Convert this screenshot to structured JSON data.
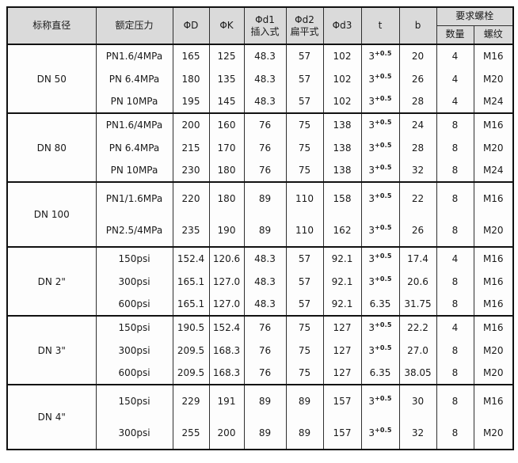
{
  "table": {
    "headers": {
      "nominal_diameter": "标称直径",
      "rated_pressure": "额定压力",
      "phi_d": "ΦD",
      "phi_k": "ΦK",
      "d1_line1": "Φd1",
      "d1_line2": "插入式",
      "d2_line1": "Φd2",
      "d2_line2": "扁平式",
      "phi_d3": "Φd3",
      "t": "t",
      "b": "b",
      "bolts_group": "要求螺栓",
      "bolt_qty": "数量",
      "bolt_thread": "螺纹"
    },
    "groups": [
      {
        "diameter": "DN 50",
        "rows": [
          {
            "pressure": "PN1.6/4MPa",
            "D": "165",
            "K": "125",
            "d1": "48.3",
            "d2": "57",
            "d3": "102",
            "t": "3",
            "t_sup": "+0.5",
            "b": "20",
            "qty": "4",
            "thread": "M16"
          },
          {
            "pressure": "PN 6.4MPa",
            "D": "180",
            "K": "135",
            "d1": "48.3",
            "d2": "57",
            "d3": "102",
            "t": "3",
            "t_sup": "+0.5",
            "b": "26",
            "qty": "4",
            "thread": "M20"
          },
          {
            "pressure": "PN 10MPa",
            "D": "195",
            "K": "145",
            "d1": "48.3",
            "d2": "57",
            "d3": "102",
            "t": "3",
            "t_sup": "+0.5",
            "b": "28",
            "qty": "4",
            "thread": "M24"
          }
        ]
      },
      {
        "diameter": "DN 80",
        "rows": [
          {
            "pressure": "PN1.6/4MPa",
            "D": "200",
            "K": "160",
            "d1": "76",
            "d2": "75",
            "d3": "138",
            "t": "3",
            "t_sup": "+0.5",
            "b": "24",
            "qty": "8",
            "thread": "M16"
          },
          {
            "pressure": "PN 6.4MPa",
            "D": "215",
            "K": "170",
            "d1": "76",
            "d2": "75",
            "d3": "138",
            "t": "3",
            "t_sup": "+0.5",
            "b": "28",
            "qty": "8",
            "thread": "M20"
          },
          {
            "pressure": "PN 10MPa",
            "D": "230",
            "K": "180",
            "d1": "76",
            "d2": "75",
            "d3": "138",
            "t": "3",
            "t_sup": "+0.5",
            "b": "32",
            "qty": "8",
            "thread": "M24"
          }
        ]
      },
      {
        "diameter": "DN 100",
        "rows": [
          {
            "pressure": "PN1/1.6MPa",
            "D": "220",
            "K": "180",
            "d1": "89",
            "d2": "110",
            "d3": "158",
            "t": "3",
            "t_sup": "+0.5",
            "b": "22",
            "qty": "8",
            "thread": "M16"
          },
          {
            "pressure": "PN2.5/4MPa",
            "D": "235",
            "K": "190",
            "d1": "89",
            "d2": "110",
            "d3": "162",
            "t": "3",
            "t_sup": "+0.5",
            "b": "26",
            "qty": "8",
            "thread": "M20"
          }
        ]
      },
      {
        "diameter": "DN 2\"",
        "rows": [
          {
            "pressure": "150psi",
            "D": "152.4",
            "K": "120.6",
            "d1": "48.3",
            "d2": "57",
            "d3": "92.1",
            "t": "3",
            "t_sup": "+0.5",
            "b": "17.4",
            "qty": "4",
            "thread": "M16"
          },
          {
            "pressure": "300psi",
            "D": "165.1",
            "K": "127.0",
            "d1": "48.3",
            "d2": "57",
            "d3": "92.1",
            "t": "3",
            "t_sup": "+0.5",
            "b": "20.6",
            "qty": "8",
            "thread": "M16"
          },
          {
            "pressure": "600psi",
            "D": "165.1",
            "K": "127.0",
            "d1": "48.3",
            "d2": "57",
            "d3": "92.1",
            "t": "6.35",
            "t_sup": "",
            "b": "31.75",
            "qty": "8",
            "thread": "M16"
          }
        ]
      },
      {
        "diameter": "DN 3\"",
        "rows": [
          {
            "pressure": "150psi",
            "D": "190.5",
            "K": "152.4",
            "d1": "76",
            "d2": "75",
            "d3": "127",
            "t": "3",
            "t_sup": "+0.5",
            "b": "22.2",
            "qty": "4",
            "thread": "M16"
          },
          {
            "pressure": "300psi",
            "D": "209.5",
            "K": "168.3",
            "d1": "76",
            "d2": "75",
            "d3": "127",
            "t": "3",
            "t_sup": "+0.5",
            "b": "27.0",
            "qty": "8",
            "thread": "M20"
          },
          {
            "pressure": "600psi",
            "D": "209.5",
            "K": "168.3",
            "d1": "76",
            "d2": "75",
            "d3": "127",
            "t": "6.35",
            "t_sup": "",
            "b": "38.05",
            "qty": "8",
            "thread": "M20"
          }
        ]
      },
      {
        "diameter": "DN 4\"",
        "rows": [
          {
            "pressure": "150psi",
            "D": "229",
            "K": "191",
            "d1": "89",
            "d2": "89",
            "d3": "157",
            "t": "3",
            "t_sup": "+0.5",
            "b": "30",
            "qty": "8",
            "thread": "M16"
          },
          {
            "pressure": "300psi",
            "D": "255",
            "K": "200",
            "d1": "89",
            "d2": "89",
            "d3": "157",
            "t": "3",
            "t_sup": "+0.5",
            "b": "32",
            "qty": "8",
            "thread": "M20"
          }
        ]
      }
    ],
    "colors": {
      "header_bg": "#dadada",
      "border_inner": "#2f2f2f",
      "border_outer": "#111111",
      "text": "#1a1a1a"
    }
  }
}
